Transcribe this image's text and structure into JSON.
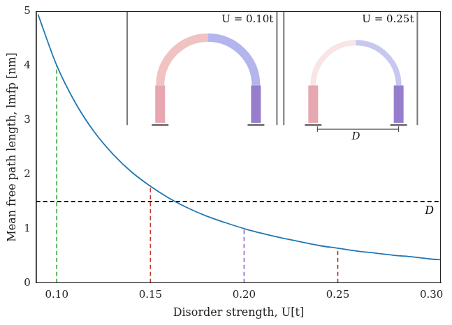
{
  "chart_data": {
    "type": "line",
    "x_label": "Disorder strength, U[t]",
    "y_label": "Mean free path length, lmfp [nm]",
    "x": [
      0.09,
      0.1,
      0.11,
      0.12,
      0.13,
      0.14,
      0.15,
      0.16,
      0.17,
      0.18,
      0.19,
      0.2,
      0.21,
      0.22,
      0.23,
      0.24,
      0.25,
      0.26,
      0.27,
      0.28,
      0.29,
      0.3,
      0.305
    ],
    "values": [
      4.94,
      4.0,
      3.31,
      2.78,
      2.37,
      2.04,
      1.78,
      1.56,
      1.38,
      1.23,
      1.11,
      1.0,
      0.91,
      0.83,
      0.76,
      0.69,
      0.64,
      0.59,
      0.55,
      0.51,
      0.48,
      0.44,
      0.43
    ],
    "color": "#1f77b4",
    "xlim": [
      0.089,
      0.305
    ],
    "xticks": [
      {
        "value": 0.1,
        "label": "0.10"
      },
      {
        "value": 0.15,
        "label": "0.15"
      },
      {
        "value": 0.2,
        "label": "0.20"
      },
      {
        "value": 0.25,
        "label": "0.25"
      },
      {
        "value": 0.3,
        "label": "0.30"
      }
    ],
    "ylim": [
      0,
      5
    ],
    "yticks": [
      0,
      1,
      2,
      3,
      4,
      5
    ],
    "grid": false,
    "vlines": [
      {
        "x": 0.1,
        "y": 4.0,
        "color": "#2ca02c",
        "line_style": "dashed"
      },
      {
        "x": 0.15,
        "y": 1.8,
        "color": "#c0392b",
        "line_style": "dashed"
      },
      {
        "x": 0.2,
        "y": 1.0,
        "color": "#9467bd",
        "line_style": "dashed"
      },
      {
        "x": 0.25,
        "y": 0.64,
        "color": "#a0302a",
        "line_style": "dashed"
      }
    ],
    "hline": {
      "y": 1.5,
      "label": "D",
      "color": "#000000",
      "line_style": "dashed"
    },
    "insets": [
      {
        "label": "U = 0.10t"
      },
      {
        "label": "U = 0.25t",
        "bracket_label": "D"
      }
    ]
  }
}
